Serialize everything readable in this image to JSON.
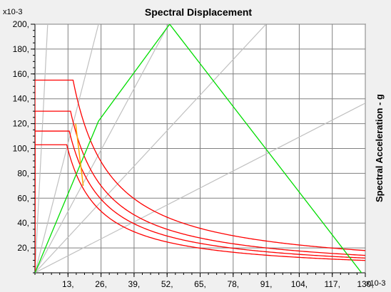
{
  "chart_data": {
    "type": "line",
    "title": "Spectral Displacement",
    "ylabel": "Spectral Acceleration - g",
    "x_multiplier": "x10-3",
    "y_multiplier": "x10-3",
    "xlim": [
      0,
      130
    ],
    "ylim": [
      0,
      200
    ],
    "x_ticks": [
      13,
      26,
      39,
      52,
      65,
      78,
      91,
      104,
      117,
      130
    ],
    "x_tick_labels": [
      "13,",
      "26,",
      "39,",
      "52,",
      "65,",
      "78,",
      "91,",
      "104,",
      "117,",
      "130,"
    ],
    "y_ticks": [
      20,
      40,
      60,
      80,
      100,
      120,
      140,
      160,
      180,
      200
    ],
    "y_tick_labels": [
      "20,",
      "40,",
      "60,",
      "80,",
      "100,",
      "120,",
      "140,",
      "160,",
      "180,",
      "200,"
    ],
    "grid": true,
    "colors": {
      "demand": "#ff0000",
      "capacity": "#00dd00",
      "period_lines": "#c0c0c0",
      "orange": "#ffa500",
      "grid": "#808080",
      "background": "#ffffff"
    },
    "period_lines_slopes": [
      40,
      8,
      3.8,
      2.2,
      1.05
    ],
    "demand_curves": [
      {
        "plateau": 155,
        "corner": 13,
        "knee": 15,
        "end": 130
      },
      {
        "plateau": 130,
        "corner": 12,
        "knee": 14,
        "end": 130
      },
      {
        "plateau": 114,
        "corner": 12,
        "knee": 13.5,
        "end": 130
      },
      {
        "plateau": 103,
        "corner": 10,
        "knee": 12.5,
        "end": 130
      }
    ],
    "capacity_curve": {
      "x": [
        0,
        25,
        53,
        128.5
      ],
      "y": [
        0,
        122,
        200,
        0
      ]
    },
    "orange_segment": {
      "x": [
        16,
        19
      ],
      "y": [
        120,
        70
      ]
    }
  }
}
